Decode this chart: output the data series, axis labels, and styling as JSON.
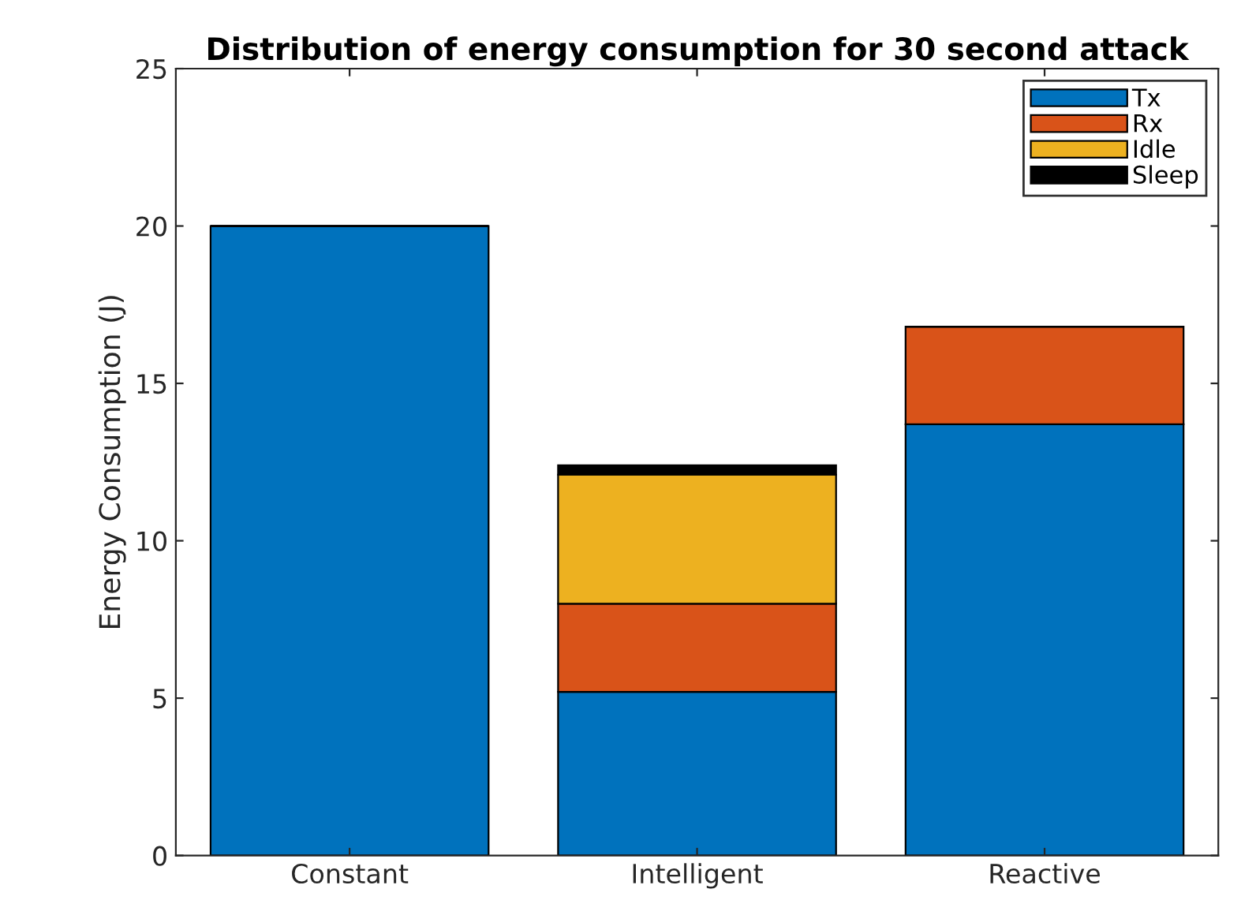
{
  "chart_data": {
    "type": "bar",
    "title": "Distribution of energy consumption for 30 second attack",
    "ylabel": "Energy Consumption (J)",
    "categories": [
      "Constant",
      "Intelligent",
      "Reactive"
    ],
    "stacked": true,
    "series": [
      {
        "name": "Tx",
        "color": "#0072bd",
        "values": [
          20.0,
          5.2,
          13.7
        ]
      },
      {
        "name": "Rx",
        "color": "#d95319",
        "values": [
          0,
          2.8,
          3.1
        ]
      },
      {
        "name": "Idle",
        "color": "#edb120",
        "values": [
          0,
          4.1,
          0
        ]
      },
      {
        "name": "Sleep",
        "color": "#000000",
        "values": [
          0,
          0.3,
          0
        ]
      }
    ],
    "ylim": [
      0,
      25
    ],
    "yticks": [
      0,
      5,
      10,
      15,
      20,
      25
    ],
    "grid": false,
    "legend": "top right"
  }
}
